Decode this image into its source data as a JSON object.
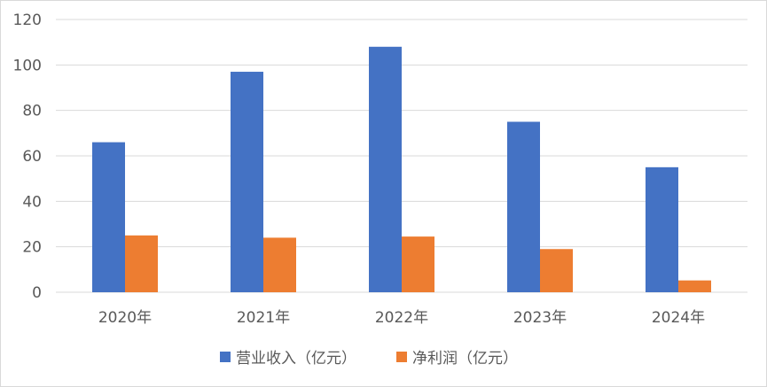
{
  "chart_data": {
    "type": "bar",
    "title": "",
    "xlabel": "",
    "ylabel": "",
    "categories": [
      "2020年",
      "2021年",
      "2022年",
      "2023年",
      "2024年"
    ],
    "series": [
      {
        "name": "营业收入（亿元）",
        "values": [
          66,
          97,
          108,
          75,
          55
        ],
        "color": "#4472C4"
      },
      {
        "name": "净利润（亿元）",
        "values": [
          25,
          24,
          24.5,
          19,
          5.2
        ],
        "color": "#ED7D31"
      }
    ],
    "ylim": [
      0,
      120
    ],
    "yticks": [
      "0",
      "20",
      "40",
      "60",
      "80",
      "100",
      "120"
    ],
    "grid": true,
    "legend_position": "bottom"
  }
}
